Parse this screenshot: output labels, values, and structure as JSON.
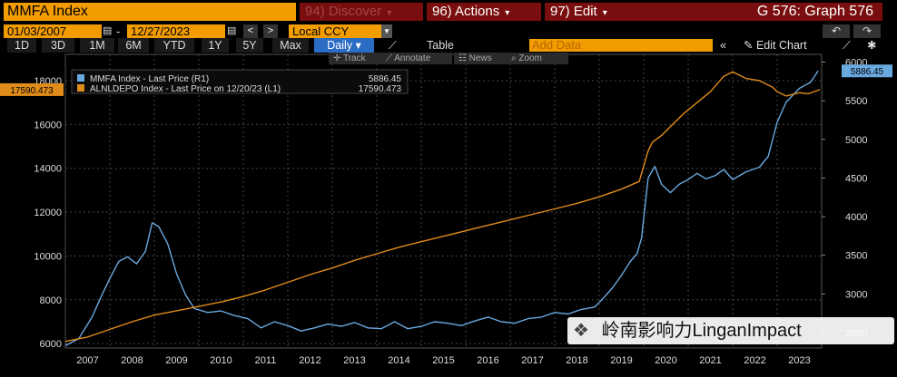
{
  "header": {
    "ticker": "MMFA Index",
    "menus": [
      {
        "label": "94) Discover",
        "dim": true
      },
      {
        "label": "96) Actions",
        "dim": false
      },
      {
        "label": "97) Edit",
        "dim": false
      }
    ],
    "graph_title": "G 576: Graph 576"
  },
  "controls": {
    "start_date": "01/03/2007",
    "end_date": "12/27/2023",
    "currency": "Local CCY",
    "ranges": [
      "1D",
      "3D",
      "1M",
      "6M",
      "YTD",
      "1Y",
      "5Y",
      "Max"
    ],
    "frequency": "Daily",
    "table_label": "Table",
    "add_data_placeholder": "Add Data",
    "edit_chart_label": "Edit Chart",
    "sub_tools": [
      "Track",
      "Annotate",
      "News",
      "Zoom"
    ]
  },
  "watermark": "岭南影响力LinganImpact",
  "colors": {
    "background": "#000000",
    "mmfa": "#6aa8e0",
    "alnldepo": "#e08c1a",
    "accent_orange": "#f39c00",
    "menu_red": "#7a0d0d"
  },
  "chart_data": {
    "type": "line",
    "legend": [
      {
        "label": "MMFA Index - Last Price (R1)",
        "value": "5886.45"
      },
      {
        "label": "ALNLDEPO Index - Last Price on 12/20/23 (L1)",
        "value": "17590.473"
      }
    ],
    "last_value_labels": {
      "left": "17590.473",
      "right": "5886.45"
    },
    "x_ticks": [
      "2007",
      "2008",
      "2009",
      "2010",
      "2011",
      "2012",
      "2013",
      "2014",
      "2015",
      "2016",
      "2017",
      "2018",
      "2019",
      "2020",
      "2021",
      "2022",
      "2023"
    ],
    "x_range": [
      2007.0,
      2024.0
    ],
    "left_axis": {
      "min": 5800,
      "max": 19200,
      "ticks": [
        6000,
        8000,
        10000,
        12000,
        14000,
        16000,
        18000
      ]
    },
    "right_axis": {
      "min": 2300,
      "max": 6100,
      "ticks": [
        2500,
        3000,
        3500,
        4000,
        4500,
        5000,
        5500,
        6000
      ]
    },
    "grid": true,
    "series": [
      {
        "name": "MMFA Index",
        "axis": "right",
        "color": "#6aa8e0",
        "points": [
          [
            2007.0,
            2330
          ],
          [
            2007.3,
            2420
          ],
          [
            2007.6,
            2700
          ],
          [
            2007.8,
            2960
          ],
          [
            2008.0,
            3200
          ],
          [
            2008.2,
            3420
          ],
          [
            2008.4,
            3480
          ],
          [
            2008.6,
            3390
          ],
          [
            2008.8,
            3550
          ],
          [
            2008.95,
            3920
          ],
          [
            2009.1,
            3870
          ],
          [
            2009.3,
            3650
          ],
          [
            2009.5,
            3260
          ],
          [
            2009.7,
            2990
          ],
          [
            2009.9,
            2810
          ],
          [
            2010.2,
            2760
          ],
          [
            2010.5,
            2780
          ],
          [
            2010.8,
            2720
          ],
          [
            2011.1,
            2680
          ],
          [
            2011.4,
            2560
          ],
          [
            2011.7,
            2640
          ],
          [
            2012.0,
            2590
          ],
          [
            2012.3,
            2520
          ],
          [
            2012.6,
            2560
          ],
          [
            2012.9,
            2610
          ],
          [
            2013.2,
            2580
          ],
          [
            2013.5,
            2630
          ],
          [
            2013.8,
            2560
          ],
          [
            2014.1,
            2550
          ],
          [
            2014.4,
            2640
          ],
          [
            2014.7,
            2550
          ],
          [
            2015.0,
            2580
          ],
          [
            2015.3,
            2640
          ],
          [
            2015.6,
            2620
          ],
          [
            2015.9,
            2590
          ],
          [
            2016.2,
            2650
          ],
          [
            2016.5,
            2700
          ],
          [
            2016.8,
            2640
          ],
          [
            2017.1,
            2620
          ],
          [
            2017.4,
            2680
          ],
          [
            2017.7,
            2700
          ],
          [
            2018.0,
            2760
          ],
          [
            2018.3,
            2740
          ],
          [
            2018.6,
            2800
          ],
          [
            2018.9,
            2830
          ],
          [
            2019.1,
            2950
          ],
          [
            2019.3,
            3080
          ],
          [
            2019.5,
            3240
          ],
          [
            2019.7,
            3420
          ],
          [
            2019.85,
            3520
          ],
          [
            2019.95,
            3720
          ],
          [
            2020.1,
            4500
          ],
          [
            2020.25,
            4650
          ],
          [
            2020.4,
            4420
          ],
          [
            2020.6,
            4310
          ],
          [
            2020.8,
            4420
          ],
          [
            2021.0,
            4480
          ],
          [
            2021.2,
            4560
          ],
          [
            2021.4,
            4490
          ],
          [
            2021.6,
            4530
          ],
          [
            2021.8,
            4610
          ],
          [
            2022.0,
            4480
          ],
          [
            2022.3,
            4580
          ],
          [
            2022.6,
            4640
          ],
          [
            2022.8,
            4780
          ],
          [
            2023.0,
            5220
          ],
          [
            2023.2,
            5480
          ],
          [
            2023.5,
            5660
          ],
          [
            2023.75,
            5740
          ],
          [
            2023.92,
            5886
          ]
        ]
      },
      {
        "name": "ALNLDEPO Index",
        "axis": "left",
        "color": "#e08c1a",
        "points": [
          [
            2007.0,
            6100
          ],
          [
            2007.5,
            6300
          ],
          [
            2008.0,
            6650
          ],
          [
            2008.5,
            7000
          ],
          [
            2009.0,
            7300
          ],
          [
            2009.5,
            7500
          ],
          [
            2010.0,
            7700
          ],
          [
            2010.5,
            7900
          ],
          [
            2011.0,
            8150
          ],
          [
            2011.5,
            8450
          ],
          [
            2012.0,
            8800
          ],
          [
            2012.5,
            9150
          ],
          [
            2013.0,
            9450
          ],
          [
            2013.5,
            9800
          ],
          [
            2014.0,
            10100
          ],
          [
            2014.5,
            10400
          ],
          [
            2015.0,
            10650
          ],
          [
            2015.5,
            10900
          ],
          [
            2016.0,
            11150
          ],
          [
            2016.5,
            11400
          ],
          [
            2017.0,
            11650
          ],
          [
            2017.5,
            11900
          ],
          [
            2018.0,
            12150
          ],
          [
            2018.5,
            12400
          ],
          [
            2019.0,
            12700
          ],
          [
            2019.5,
            13050
          ],
          [
            2019.9,
            13400
          ],
          [
            2020.1,
            14800
          ],
          [
            2020.2,
            15200
          ],
          [
            2020.4,
            15500
          ],
          [
            2020.6,
            15900
          ],
          [
            2020.9,
            16500
          ],
          [
            2021.2,
            17000
          ],
          [
            2021.5,
            17500
          ],
          [
            2021.8,
            18200
          ],
          [
            2022.0,
            18400
          ],
          [
            2022.3,
            18100
          ],
          [
            2022.6,
            18000
          ],
          [
            2022.9,
            17700
          ],
          [
            2023.0,
            17500
          ],
          [
            2023.2,
            17300
          ],
          [
            2023.5,
            17450
          ],
          [
            2023.7,
            17400
          ],
          [
            2023.96,
            17590
          ]
        ]
      }
    ]
  }
}
